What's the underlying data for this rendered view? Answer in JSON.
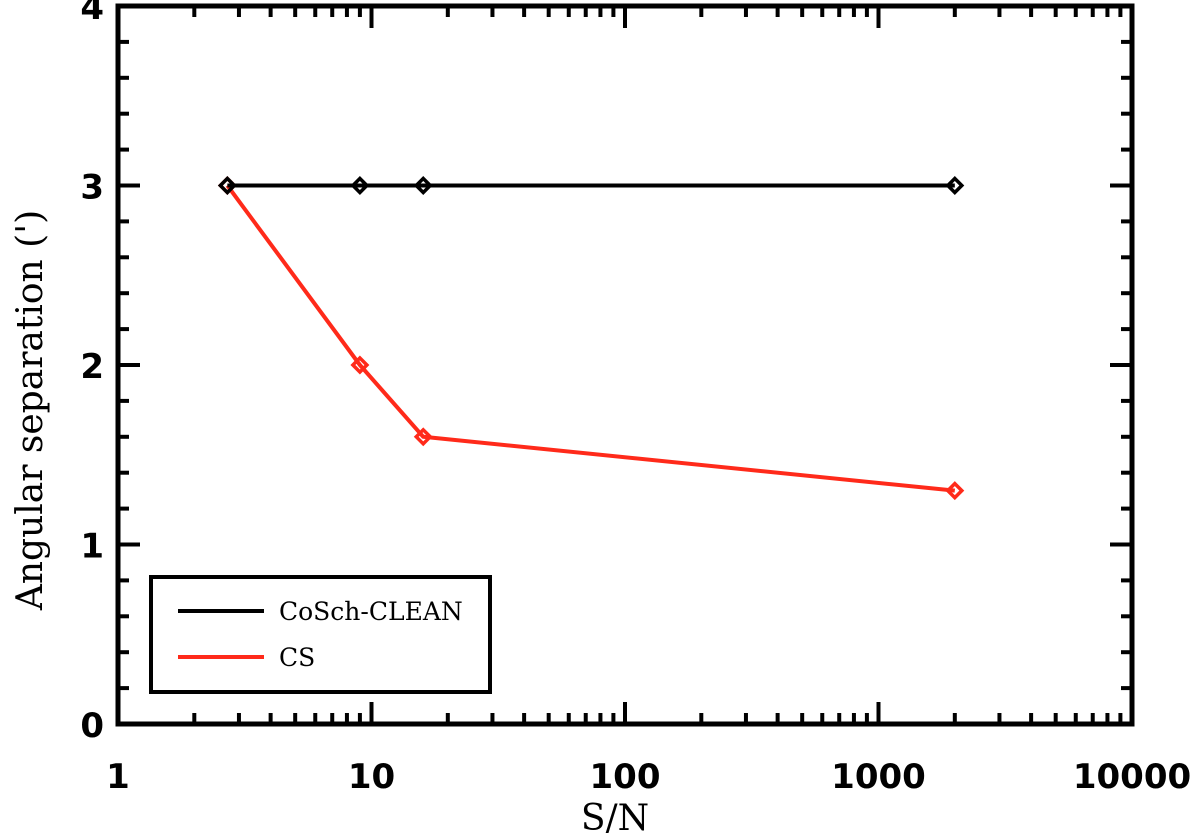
{
  "chart_data": {
    "type": "line",
    "xlabel": "S/N",
    "ylabel": "Angular separation (')",
    "xscale": "log",
    "xlim": [
      1,
      10000
    ],
    "ylim": [
      0,
      4
    ],
    "x_ticks": [
      "1",
      "10",
      "100",
      "1000",
      "10000"
    ],
    "y_ticks": [
      "0",
      "1",
      "2",
      "3",
      "4"
    ],
    "legend_position": "bottom-left",
    "series": [
      {
        "name": "CoSch-CLEAN",
        "color": "#000000",
        "x": [
          2.7,
          9,
          16,
          2000
        ],
        "y": [
          3,
          3,
          3,
          3
        ]
      },
      {
        "name": "CS",
        "color": "#ff2a1a",
        "x": [
          2.7,
          9,
          16,
          2000
        ],
        "y": [
          3,
          2,
          1.6,
          1.3
        ]
      }
    ]
  }
}
